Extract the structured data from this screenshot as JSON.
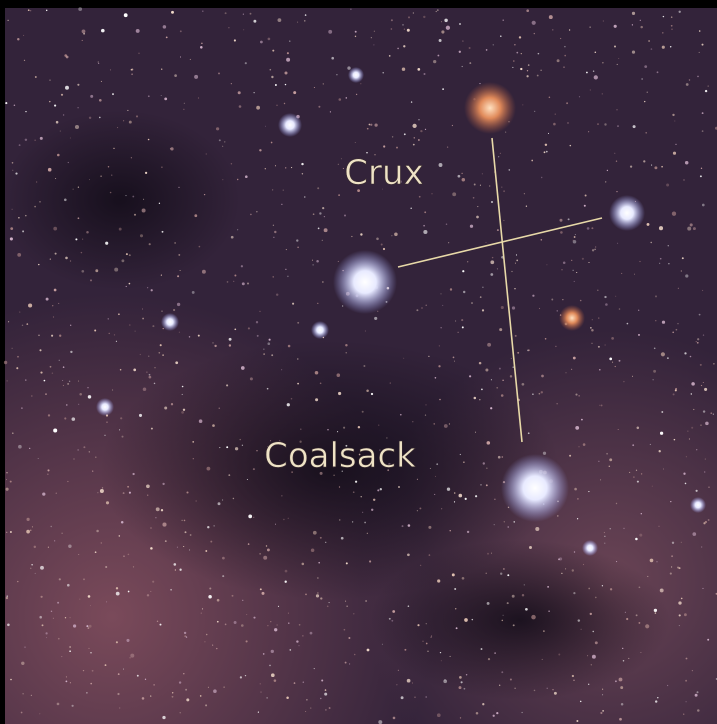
{
  "labels": {
    "crux": "Crux",
    "coalsack": "Coalsack"
  }
}
